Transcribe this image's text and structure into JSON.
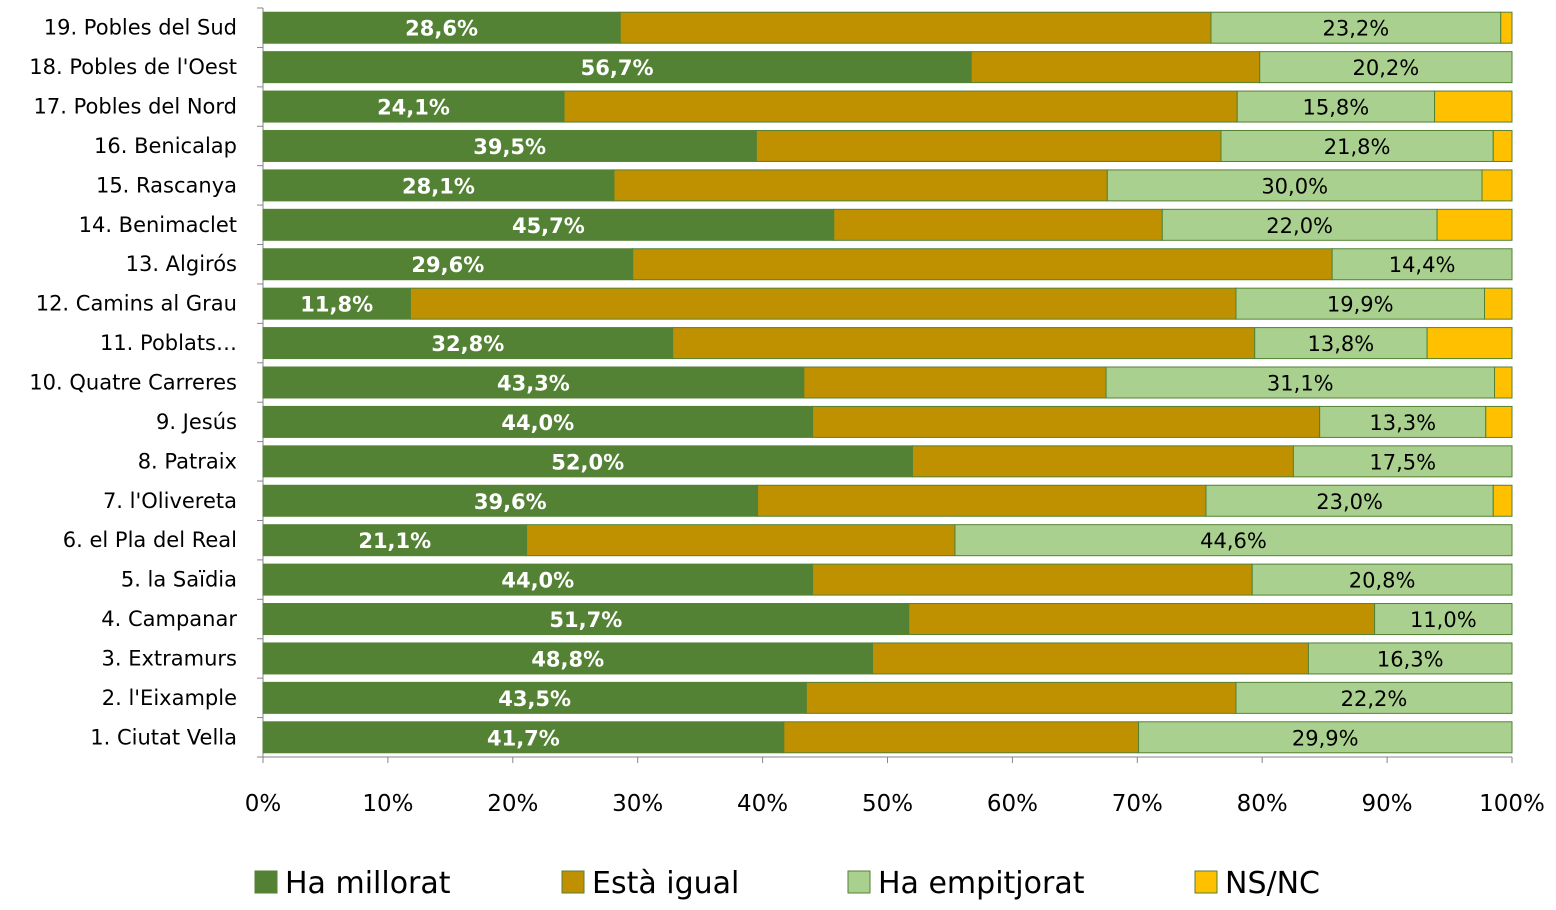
{
  "chart_data": {
    "type": "bar",
    "orientation": "horizontal",
    "stacked": "percent",
    "title": "",
    "xlabel": "",
    "ylabel": "",
    "xlim": [
      0,
      100
    ],
    "x_ticks": [
      "0%",
      "10%",
      "20%",
      "30%",
      "40%",
      "50%",
      "60%",
      "70%",
      "80%",
      "90%",
      "100%"
    ],
    "grid": false,
    "legend_position": "bottom",
    "categories": [
      "19. Pobles del Sud",
      "18. Pobles de l'Oest",
      "17. Pobles del Nord",
      "16. Benicalap",
      "15. Rascanya",
      "14. Benimaclet",
      "13. Algirós",
      "12. Camins al Grau",
      "11. Poblats…",
      "10. Quatre Carreres",
      "9. Jesús",
      "8. Patraix",
      "7. l'Olivereta",
      "6. el Pla del Real",
      "5. la Saïdia",
      "4. Campanar",
      "3. Extramurs",
      "2. l'Eixample",
      "1. Ciutat Vella"
    ],
    "series": [
      {
        "name": "Ha millorat",
        "color": "#548235",
        "values": [
          28.6,
          56.7,
          24.1,
          39.5,
          28.1,
          45.7,
          29.6,
          11.8,
          32.8,
          43.3,
          44.0,
          52.0,
          39.6,
          21.1,
          44.0,
          51.7,
          48.8,
          43.5,
          41.7
        ],
        "labels": [
          "28,6%",
          "56,7%",
          "24,1%",
          "39,5%",
          "28,1%",
          "45,7%",
          "29,6%",
          "11,8%",
          "32,8%",
          "43,3%",
          "44,0%",
          "52,0%",
          "39,6%",
          "21,1%",
          "44,0%",
          "51,7%",
          "48,8%",
          "43,5%",
          "41,7%"
        ]
      },
      {
        "name": "Està igual",
        "color": "#BF9000",
        "values": [
          47.3,
          23.1,
          53.9,
          37.2,
          39.5,
          26.3,
          56.0,
          66.1,
          46.6,
          24.2,
          40.6,
          30.5,
          35.9,
          34.3,
          35.2,
          37.3,
          34.9,
          34.4,
          28.4
        ],
        "labels": []
      },
      {
        "name": "Ha empitjorat",
        "color": "#A9D08E",
        "values": [
          23.2,
          20.2,
          15.8,
          21.8,
          30.0,
          22.0,
          14.4,
          19.9,
          13.8,
          31.1,
          13.3,
          17.5,
          23.0,
          44.6,
          20.8,
          11.0,
          16.3,
          22.2,
          29.9
        ],
        "labels": [
          "23,2%",
          "20,2%",
          "15,8%",
          "21,8%",
          "30,0%",
          "22,0%",
          "14,4%",
          "19,9%",
          "13,8%",
          "31,1%",
          "13,3%",
          "17,5%",
          "23,0%",
          "44,6%",
          "20,8%",
          "11,0%",
          "16,3%",
          "22,2%",
          "29,9%"
        ]
      },
      {
        "name": "NS/NC",
        "color": "#FFC000",
        "values": [
          0.9,
          0.0,
          6.2,
          1.5,
          2.4,
          6.0,
          0.0,
          2.2,
          6.8,
          1.4,
          2.1,
          0.0,
          1.5,
          0.0,
          0.0,
          0.0,
          0.0,
          0.0,
          0.0
        ],
        "labels": []
      }
    ]
  }
}
